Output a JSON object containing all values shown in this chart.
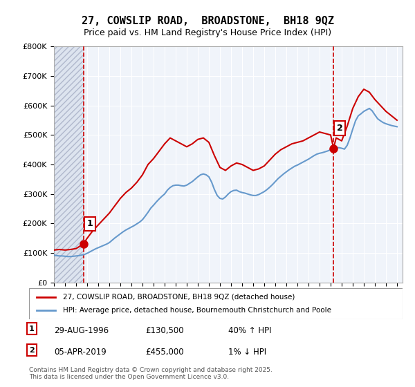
{
  "title": "27, COWSLIP ROAD,  BROADSTONE,  BH18 9QZ",
  "subtitle": "Price paid vs. HM Land Registry's House Price Index (HPI)",
  "ylabel_ticks": [
    "£0",
    "£100K",
    "£200K",
    "£300K",
    "£400K",
    "£500K",
    "£600K",
    "£700K",
    "£800K"
  ],
  "ytick_values": [
    0,
    100000,
    200000,
    300000,
    400000,
    500000,
    600000,
    700000,
    800000
  ],
  "ylim": [
    0,
    800000
  ],
  "xlim_start": 1994.0,
  "xlim_end": 2025.5,
  "hpi_color": "#6699cc",
  "price_color": "#cc0000",
  "dashed_color": "#cc0000",
  "background_plot": "#f0f4fa",
  "background_hatch": "#dde4ef",
  "grid_color": "#ffffff",
  "purchase1_x": 1996.66,
  "purchase1_y": 130500,
  "purchase1_label": "1",
  "purchase2_x": 2019.26,
  "purchase2_y": 455000,
  "purchase2_label": "2",
  "legend_line1": "27, COWSLIP ROAD, BROADSTONE, BH18 9QZ (detached house)",
  "legend_line2": "HPI: Average price, detached house, Bournemouth Christchurch and Poole",
  "note1_label": "1",
  "note1_date": "29-AUG-1996",
  "note1_price": "£130,500",
  "note1_hpi": "40% ↑ HPI",
  "note2_label": "2",
  "note2_date": "05-APR-2019",
  "note2_price": "£455,000",
  "note2_hpi": "1% ↓ HPI",
  "footer": "Contains HM Land Registry data © Crown copyright and database right 2025.\nThis data is licensed under the Open Government Licence v3.0.",
  "hpi_data_x": [
    1994.0,
    1994.25,
    1994.5,
    1994.75,
    1995.0,
    1995.25,
    1995.5,
    1995.75,
    1996.0,
    1996.25,
    1996.5,
    1996.75,
    1997.0,
    1997.25,
    1997.5,
    1997.75,
    1998.0,
    1998.25,
    1998.5,
    1998.75,
    1999.0,
    1999.25,
    1999.5,
    1999.75,
    2000.0,
    2000.25,
    2000.5,
    2000.75,
    2001.0,
    2001.25,
    2001.5,
    2001.75,
    2002.0,
    2002.25,
    2002.5,
    2002.75,
    2003.0,
    2003.25,
    2003.5,
    2003.75,
    2004.0,
    2004.25,
    2004.5,
    2004.75,
    2005.0,
    2005.25,
    2005.5,
    2005.75,
    2006.0,
    2006.25,
    2006.5,
    2006.75,
    2007.0,
    2007.25,
    2007.5,
    2007.75,
    2008.0,
    2008.25,
    2008.5,
    2008.75,
    2009.0,
    2009.25,
    2009.5,
    2009.75,
    2010.0,
    2010.25,
    2010.5,
    2010.75,
    2011.0,
    2011.25,
    2011.5,
    2011.75,
    2012.0,
    2012.25,
    2012.5,
    2012.75,
    2013.0,
    2013.25,
    2013.5,
    2013.75,
    2014.0,
    2014.25,
    2014.5,
    2014.75,
    2015.0,
    2015.25,
    2015.5,
    2015.75,
    2016.0,
    2016.25,
    2016.5,
    2016.75,
    2017.0,
    2017.25,
    2017.5,
    2017.75,
    2018.0,
    2018.25,
    2018.5,
    2018.75,
    2019.0,
    2019.25,
    2019.5,
    2019.75,
    2020.0,
    2020.25,
    2020.5,
    2020.75,
    2021.0,
    2021.25,
    2021.5,
    2021.75,
    2022.0,
    2022.25,
    2022.5,
    2022.75,
    2023.0,
    2023.25,
    2023.5,
    2023.75,
    2024.0,
    2024.25,
    2024.5,
    2024.75,
    2025.0
  ],
  "hpi_data_y": [
    93000,
    91000,
    90000,
    90000,
    89000,
    88000,
    88000,
    89000,
    90000,
    91000,
    93000,
    95000,
    99000,
    104000,
    109000,
    114000,
    118000,
    122000,
    126000,
    130000,
    135000,
    143000,
    151000,
    158000,
    165000,
    172000,
    178000,
    183000,
    188000,
    193000,
    199000,
    205000,
    213000,
    225000,
    238000,
    252000,
    262000,
    273000,
    283000,
    292000,
    300000,
    313000,
    322000,
    328000,
    330000,
    330000,
    328000,
    327000,
    330000,
    336000,
    342000,
    350000,
    358000,
    365000,
    368000,
    365000,
    358000,
    340000,
    315000,
    295000,
    285000,
    283000,
    290000,
    300000,
    308000,
    312000,
    313000,
    308000,
    305000,
    303000,
    300000,
    297000,
    295000,
    295000,
    298000,
    303000,
    308000,
    315000,
    323000,
    332000,
    342000,
    352000,
    360000,
    368000,
    375000,
    382000,
    388000,
    394000,
    398000,
    403000,
    408000,
    413000,
    418000,
    424000,
    430000,
    435000,
    438000,
    440000,
    443000,
    446000,
    450000,
    455000,
    456000,
    457000,
    455000,
    452000,
    465000,
    490000,
    520000,
    548000,
    565000,
    572000,
    580000,
    585000,
    590000,
    582000,
    568000,
    555000,
    548000,
    542000,
    538000,
    535000,
    532000,
    530000,
    528000
  ],
  "price_data_x": [
    1994.0,
    1994.5,
    1995.0,
    1995.5,
    1996.0,
    1996.66,
    1997.0,
    1997.5,
    1998.0,
    1998.5,
    1999.0,
    1999.5,
    2000.0,
    2000.5,
    2001.0,
    2001.5,
    2002.0,
    2002.5,
    2003.0,
    2003.5,
    2004.0,
    2004.5,
    2005.0,
    2005.5,
    2006.0,
    2006.5,
    2007.0,
    2007.5,
    2008.0,
    2008.5,
    2009.0,
    2009.5,
    2010.0,
    2010.5,
    2011.0,
    2011.5,
    2012.0,
    2012.5,
    2013.0,
    2013.5,
    2014.0,
    2014.5,
    2015.0,
    2015.5,
    2016.0,
    2016.5,
    2017.0,
    2017.5,
    2018.0,
    2018.5,
    2019.0,
    2019.26,
    2019.5,
    2020.0,
    2020.5,
    2021.0,
    2021.5,
    2022.0,
    2022.5,
    2023.0,
    2023.5,
    2024.0,
    2024.5,
    2025.0
  ],
  "price_data_y": [
    110000,
    112000,
    110000,
    112000,
    115000,
    130500,
    150000,
    175000,
    195000,
    215000,
    235000,
    260000,
    285000,
    305000,
    320000,
    340000,
    365000,
    400000,
    420000,
    445000,
    470000,
    490000,
    480000,
    470000,
    460000,
    470000,
    485000,
    490000,
    475000,
    430000,
    390000,
    380000,
    395000,
    405000,
    400000,
    390000,
    380000,
    385000,
    395000,
    415000,
    435000,
    450000,
    460000,
    470000,
    475000,
    480000,
    490000,
    500000,
    510000,
    505000,
    500000,
    455000,
    490000,
    480000,
    530000,
    590000,
    630000,
    655000,
    645000,
    620000,
    600000,
    580000,
    565000,
    550000
  ]
}
